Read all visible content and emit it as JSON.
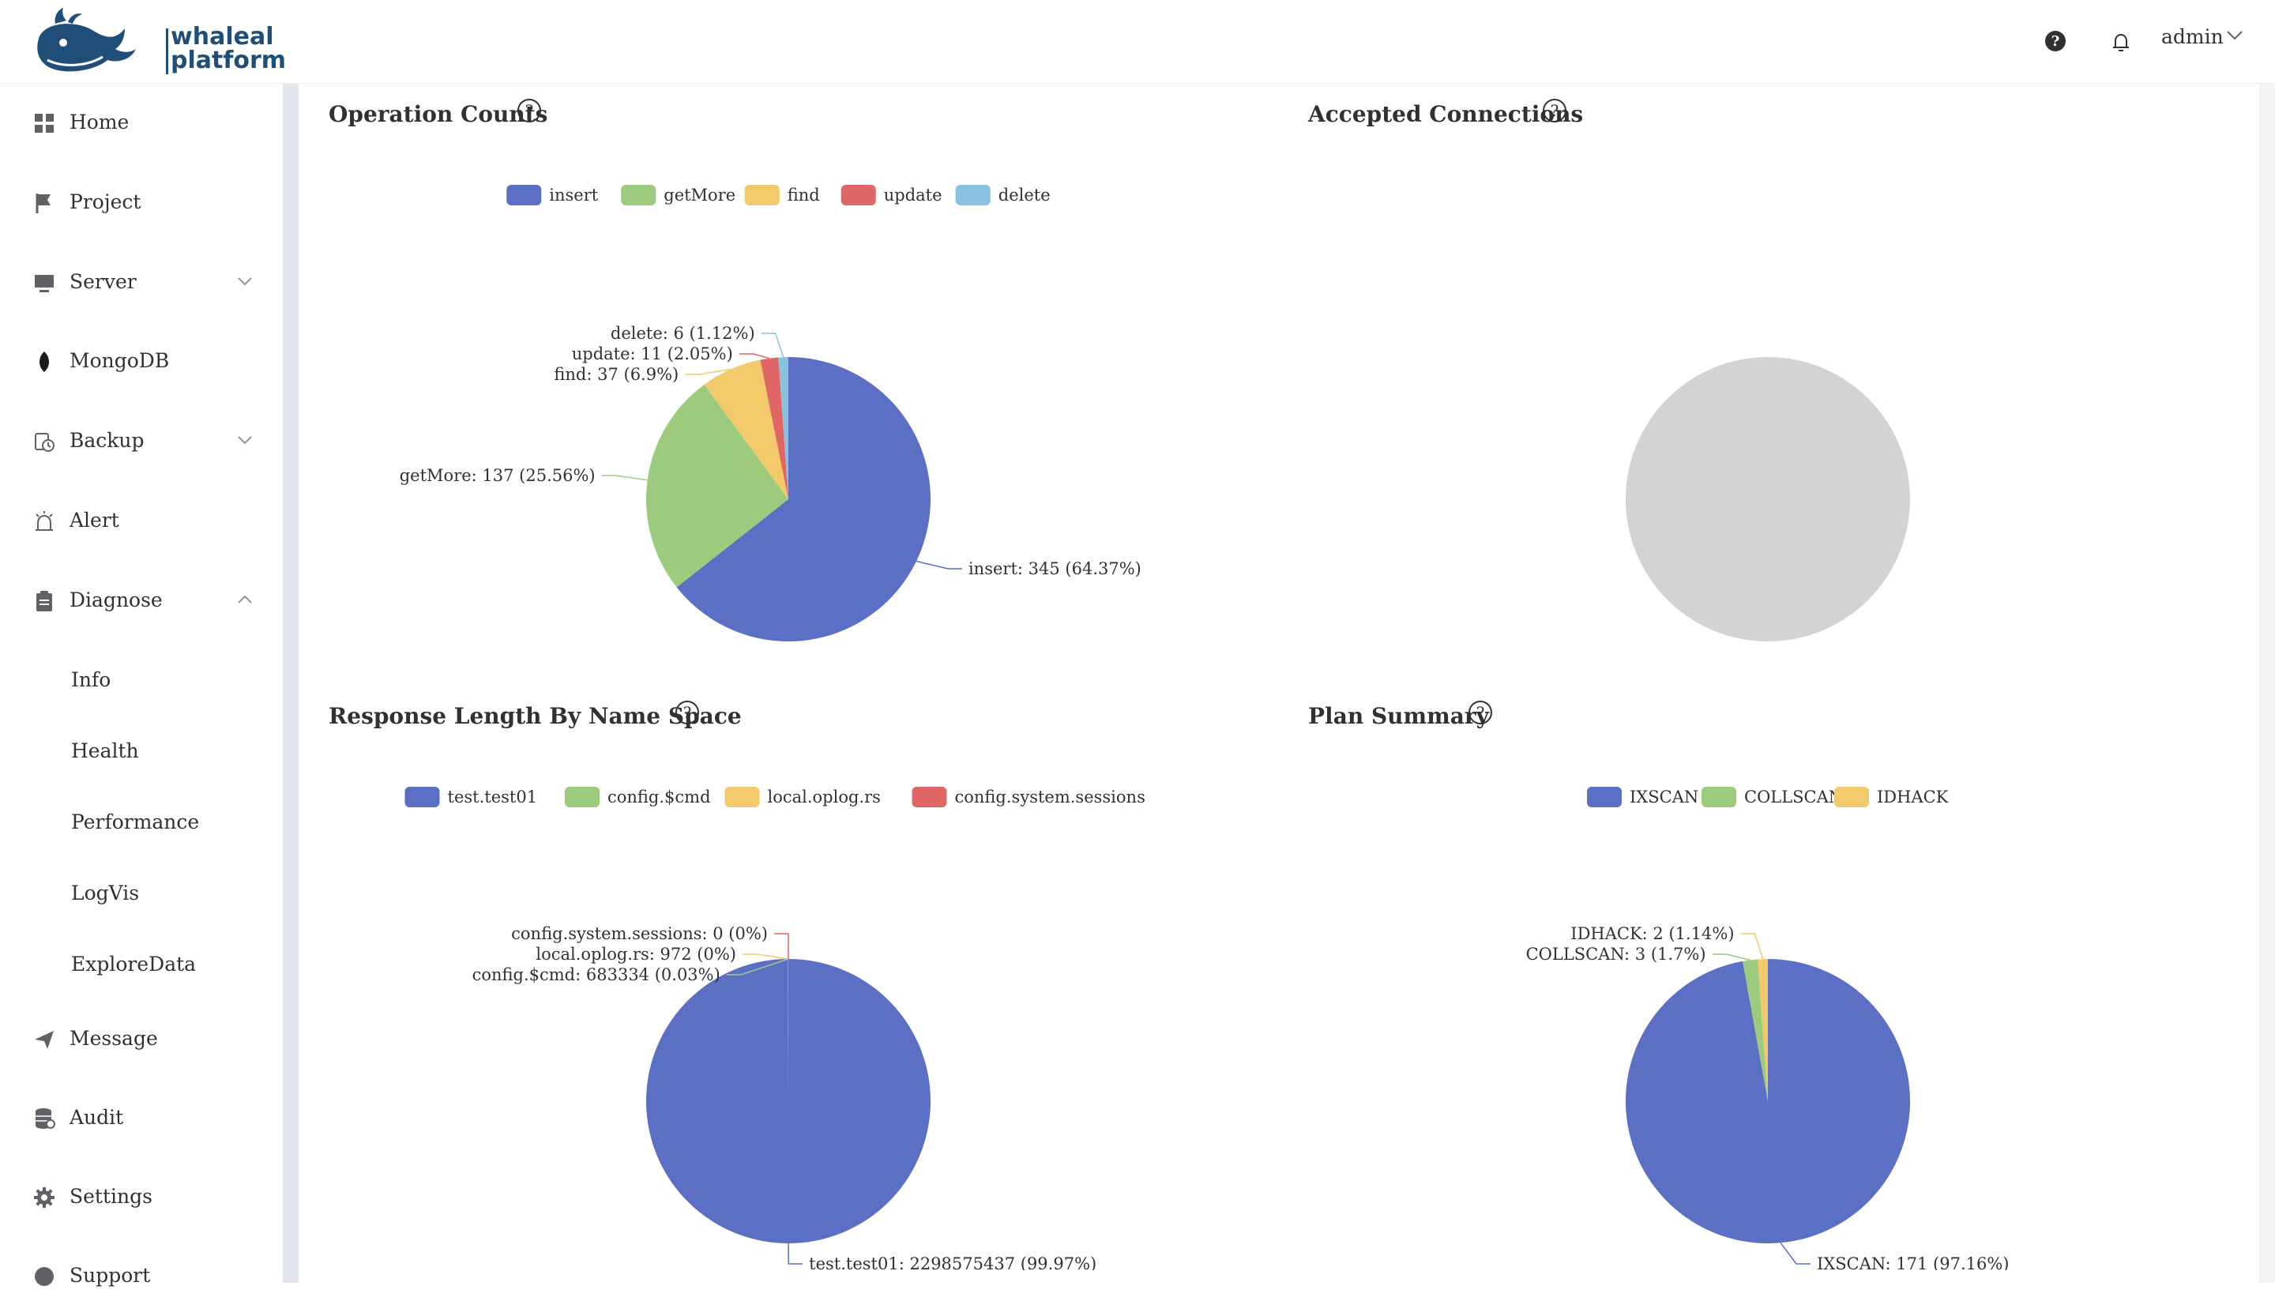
{
  "brand": {
    "line1": "whaleal",
    "line2": "platform"
  },
  "header": {
    "user": "admin"
  },
  "sidebar": {
    "items": [
      {
        "label": "Home"
      },
      {
        "label": "Project"
      },
      {
        "label": "Server"
      },
      {
        "label": "MongoDB"
      },
      {
        "label": "Backup"
      },
      {
        "label": "Alert"
      },
      {
        "label": "Diagnose"
      },
      {
        "label": "Message"
      },
      {
        "label": "Audit"
      },
      {
        "label": "Settings"
      },
      {
        "label": "Support"
      }
    ],
    "diagnose_sub": [
      {
        "label": "Info"
      },
      {
        "label": "Health"
      },
      {
        "label": "Performance"
      },
      {
        "label": "LogVis"
      },
      {
        "label": "ExploreData"
      }
    ]
  },
  "cards": {
    "op_counts": {
      "title": "Operation Counts"
    },
    "accepted": {
      "title": "Accepted Connections"
    },
    "resp_len": {
      "title": "Response Length By Name Space"
    },
    "plan": {
      "title": "Plan Summary"
    }
  },
  "colors": {
    "blue": "#5b6fc4",
    "green": "#9dcb7d",
    "yellow": "#f2c96b",
    "red": "#e06666",
    "lightblue": "#8ac1df",
    "gray": "#d3d3d3"
  },
  "chart_data": [
    {
      "type": "pie",
      "title": "Operation Counts",
      "legend_placement": "top",
      "series": [
        {
          "name": "insert",
          "value": 345,
          "label": "insert: 345 (64.37%)",
          "color": "#5b6fc4"
        },
        {
          "name": "getMore",
          "value": 137,
          "label": "getMore: 137 (25.56%)",
          "color": "#9dcb7d"
        },
        {
          "name": "find",
          "value": 37,
          "label": "find: 37 (6.9%)",
          "color": "#f2c96b"
        },
        {
          "name": "update",
          "value": 11,
          "label": "update: 11 (2.05%)",
          "color": "#e06666"
        },
        {
          "name": "delete",
          "value": 6,
          "label": "delete: 6 (1.12%)",
          "color": "#8ac1df"
        }
      ]
    },
    {
      "type": "pie",
      "title": "Accepted Connections",
      "series": []
    },
    {
      "type": "pie",
      "title": "Response Length By Name Space",
      "legend_placement": "top",
      "series": [
        {
          "name": "test.test01",
          "value": 2298575437,
          "label": "test.test01: 2298575437 (99.97%)",
          "color": "#5b6fc4"
        },
        {
          "name": "config.$cmd",
          "value": 683334,
          "label": "config.$cmd: 683334 (0.03%)",
          "color": "#9dcb7d"
        },
        {
          "name": "local.oplog.rs",
          "value": 972,
          "label": "local.oplog.rs: 972 (0%)",
          "color": "#f2c96b"
        },
        {
          "name": "config.system.sessions",
          "value": 0,
          "label": "config.system.sessions: 0 (0%)",
          "color": "#e06666"
        }
      ]
    },
    {
      "type": "pie",
      "title": "Plan Summary",
      "legend_placement": "top",
      "series": [
        {
          "name": "IXSCAN",
          "value": 171,
          "label": "IXSCAN: 171 (97.16%)",
          "color": "#5b6fc4"
        },
        {
          "name": "COLLSCAN",
          "value": 3,
          "label": "COLLSCAN: 3 (1.7%)",
          "color": "#9dcb7d"
        },
        {
          "name": "IDHACK",
          "value": 2,
          "label": "IDHACK: 2 (1.14%)",
          "color": "#f2c96b"
        }
      ]
    }
  ]
}
